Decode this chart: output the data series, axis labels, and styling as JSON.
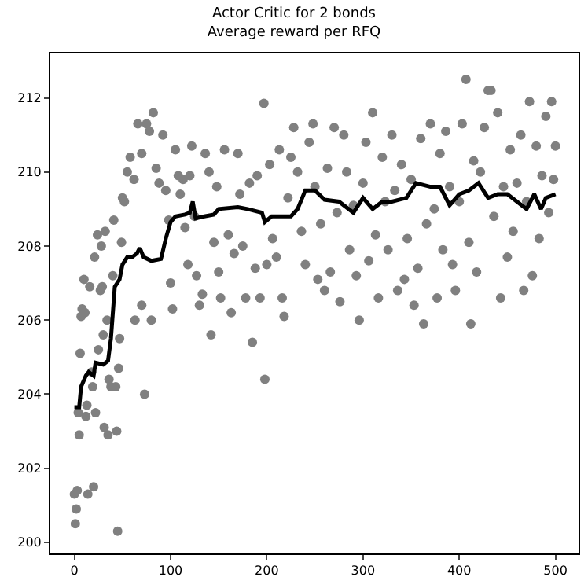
{
  "chart_data": {
    "type": "scatter",
    "title": "Actor Critic for 2 bonds\nAverage reward per RFQ",
    "xlim": [
      -25,
      524
    ],
    "ylim": [
      199.7,
      213.2
    ],
    "xticks": [
      0,
      100,
      200,
      300,
      400,
      500
    ],
    "yticks": [
      200,
      202,
      204,
      206,
      208,
      210,
      212
    ],
    "series": [
      {
        "color": "#808080",
        "marker": "circle",
        "x": [
          0,
          1,
          2,
          3,
          4,
          5,
          6,
          7,
          8,
          10,
          11,
          12,
          13,
          14,
          16,
          18,
          19,
          20,
          21,
          22,
          24,
          25,
          27,
          28,
          29,
          30,
          31,
          32,
          34,
          35,
          36,
          38,
          40,
          41,
          43,
          44,
          45,
          46,
          47,
          49,
          50,
          63,
          70,
          73,
          80,
          52,
          55,
          58,
          62,
          66,
          70,
          75,
          78,
          82,
          85,
          88,
          92,
          95,
          98,
          100,
          102,
          105,
          108,
          110,
          113,
          115,
          118,
          120,
          122,
          125,
          127,
          130,
          133,
          136,
          140,
          142,
          145,
          148,
          150,
          152,
          156,
          160,
          163,
          166,
          170,
          172,
          175,
          178,
          182,
          185,
          188,
          190,
          193,
          197,
          198,
          200,
          203,
          206,
          210,
          213,
          216,
          218,
          222,
          225,
          228,
          232,
          236,
          240,
          244,
          248,
          250,
          253,
          256,
          260,
          263,
          266,
          270,
          273,
          276,
          280,
          283,
          286,
          290,
          293,
          296,
          300,
          303,
          306,
          310,
          313,
          316,
          320,
          323,
          326,
          330,
          333,
          336,
          340,
          343,
          346,
          350,
          353,
          357,
          360,
          363,
          366,
          370,
          374,
          377,
          380,
          383,
          386,
          390,
          393,
          396,
          400,
          403,
          407,
          410,
          412,
          415,
          418,
          422,
          426,
          430,
          433,
          436,
          440,
          443,
          446,
          450,
          453,
          456,
          460,
          464,
          467,
          470,
          473,
          476,
          480,
          483,
          486,
          490,
          493,
          496,
          498,
          500
        ],
        "values": [
          201.3,
          200.5,
          200.9,
          201.4,
          203.5,
          202.9,
          205.1,
          206.1,
          206.3,
          207.1,
          206.2,
          203.4,
          203.7,
          201.3,
          206.9,
          204.6,
          204.2,
          201.5,
          207.7,
          203.5,
          208.3,
          205.2,
          206.8,
          208.0,
          206.9,
          205.6,
          203.1,
          208.4,
          206.0,
          202.9,
          204.4,
          204.2,
          207.2,
          208.7,
          204.2,
          203.0,
          200.3,
          204.7,
          205.5,
          208.1,
          209.3,
          206.0,
          206.4,
          204.0,
          206.0,
          209.2,
          210.0,
          210.4,
          209.8,
          211.3,
          210.5,
          211.3,
          211.1,
          211.6,
          210.1,
          209.7,
          211.0,
          209.5,
          208.7,
          207.0,
          206.3,
          210.6,
          209.9,
          209.4,
          209.8,
          208.5,
          207.5,
          209.9,
          210.7,
          208.8,
          207.2,
          206.4,
          206.7,
          210.5,
          210.0,
          205.6,
          208.1,
          209.6,
          207.3,
          206.6,
          210.6,
          208.3,
          206.2,
          207.8,
          210.5,
          209.4,
          208.0,
          206.6,
          209.7,
          205.4,
          207.4,
          209.9,
          206.6,
          211.85,
          204.4,
          207.5,
          210.2,
          208.2,
          207.7,
          210.6,
          206.6,
          206.1,
          209.3,
          210.4,
          211.2,
          210.0,
          208.4,
          207.5,
          210.8,
          211.3,
          209.6,
          207.1,
          208.6,
          206.8,
          210.1,
          207.3,
          211.2,
          208.9,
          206.5,
          211.0,
          210.0,
          207.9,
          209.1,
          207.2,
          206.0,
          209.7,
          210.8,
          207.6,
          211.6,
          208.3,
          206.6,
          210.4,
          209.2,
          207.9,
          211.0,
          209.5,
          206.8,
          210.2,
          207.1,
          208.2,
          209.8,
          206.4,
          207.4,
          210.9,
          205.9,
          208.6,
          211.3,
          209.0,
          206.6,
          210.5,
          207.9,
          211.1,
          209.6,
          207.5,
          206.8,
          209.2,
          211.3,
          212.5,
          208.1,
          205.9,
          210.3,
          207.3,
          210.0,
          211.2,
          212.2,
          212.2,
          208.8,
          211.6,
          206.6,
          209.6,
          207.7,
          210.6,
          208.4,
          209.7,
          211.0,
          206.8,
          209.2,
          211.9,
          207.2,
          210.7,
          208.2,
          209.9,
          211.5,
          208.9,
          211.9,
          209.8,
          210.7
        ]
      },
      {
        "type": "line",
        "color": "#000000",
        "marker": "none",
        "line_style": "solid",
        "x": [
          0,
          5,
          7,
          12,
          15,
          20,
          22,
          30,
          35,
          38,
          42,
          47,
          50,
          55,
          60,
          65,
          68,
          72,
          80,
          90,
          95,
          100,
          105,
          115,
          120,
          123,
          126,
          135,
          145,
          150,
          170,
          180,
          195,
          198,
          205,
          225,
          232,
          240,
          250,
          260,
          275,
          290,
          300,
          310,
          320,
          330,
          345,
          355,
          370,
          380,
          390,
          400,
          410,
          420,
          430,
          440,
          450,
          460,
          470,
          478,
          485,
          490,
          500
        ],
        "values": [
          203.65,
          203.65,
          204.2,
          204.5,
          204.6,
          204.5,
          204.85,
          204.8,
          204.9,
          205.5,
          206.9,
          207.1,
          207.5,
          207.7,
          207.7,
          207.8,
          207.95,
          207.7,
          207.6,
          207.65,
          208.2,
          208.65,
          208.8,
          208.85,
          208.9,
          209.2,
          208.75,
          208.8,
          208.85,
          209.0,
          209.05,
          209.0,
          208.9,
          208.65,
          208.8,
          208.8,
          209.0,
          209.5,
          209.5,
          209.25,
          209.2,
          208.9,
          209.3,
          209.0,
          209.2,
          209.2,
          209.3,
          209.7,
          209.6,
          209.6,
          209.1,
          209.4,
          209.5,
          209.7,
          209.3,
          209.4,
          209.4,
          209.2,
          209.0,
          209.4,
          209.0,
          209.3,
          209.4
        ]
      }
    ]
  }
}
